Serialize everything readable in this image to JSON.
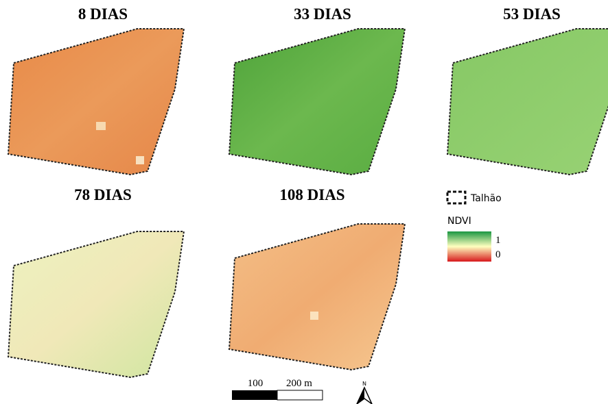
{
  "panels": [
    {
      "title": "8 DIAS"
    },
    {
      "title": "33 DIAS"
    },
    {
      "title": "53 DIAS"
    },
    {
      "title": "78 DIAS"
    },
    {
      "title": "108 DIAS"
    }
  ],
  "legend": {
    "boundary": "Talhão",
    "index": "NDVI",
    "max": "1",
    "min": "0"
  },
  "scale_bar": {
    "mid": "100",
    "end": "200 m"
  },
  "north_arrow": "N"
}
